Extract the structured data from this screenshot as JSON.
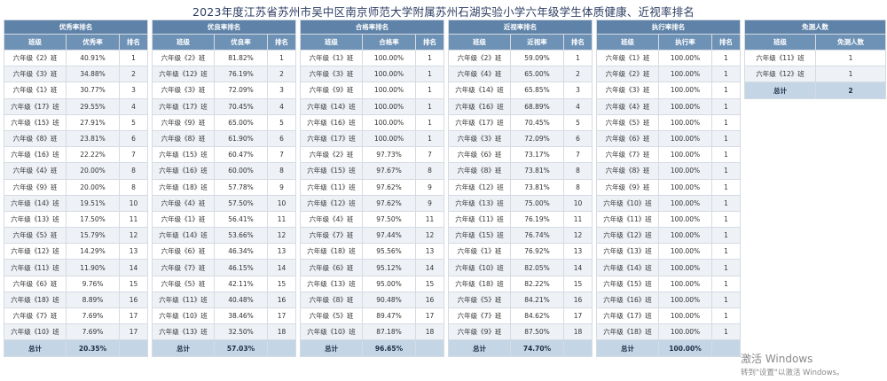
{
  "title": "2023年度江苏省苏州市吴中区南京师范大学附属苏州石湖实验小学六年级学生体质健康、近视率排名",
  "tables": [
    {
      "caption": "优秀率排名",
      "headers": [
        "班级",
        "优秀率",
        "排名"
      ],
      "rows": [
        [
          "六年级《2》班",
          "40.91%",
          "1"
        ],
        [
          "六年级《3》班",
          "34.88%",
          "2"
        ],
        [
          "六年级《1》班",
          "30.77%",
          "3"
        ],
        [
          "六年级《17》班",
          "29.55%",
          "4"
        ],
        [
          "六年级《15》班",
          "27.91%",
          "5"
        ],
        [
          "六年级《8》班",
          "23.81%",
          "6"
        ],
        [
          "六年级《16》班",
          "22.22%",
          "7"
        ],
        [
          "六年级《4》班",
          "20.00%",
          "8"
        ],
        [
          "六年级《9》班",
          "20.00%",
          "8"
        ],
        [
          "六年级《14》班",
          "19.51%",
          "10"
        ],
        [
          "六年级《13》班",
          "17.50%",
          "11"
        ],
        [
          "六年级《5》班",
          "15.79%",
          "12"
        ],
        [
          "六年级《12》班",
          "14.29%",
          "13"
        ],
        [
          "六年级《11》班",
          "11.90%",
          "14"
        ],
        [
          "六年级《6》班",
          "9.76%",
          "15"
        ],
        [
          "六年级《18》班",
          "8.89%",
          "16"
        ],
        [
          "六年级《7》班",
          "7.69%",
          "17"
        ],
        [
          "六年级《10》班",
          "7.69%",
          "17"
        ]
      ],
      "total_label": "总计",
      "total_value": "20.35%"
    },
    {
      "caption": "优良率排名",
      "headers": [
        "班级",
        "优良率",
        "排名"
      ],
      "rows": [
        [
          "六年级《2》班",
          "81.82%",
          "1"
        ],
        [
          "六年级《12》班",
          "76.19%",
          "2"
        ],
        [
          "六年级《3》班",
          "72.09%",
          "3"
        ],
        [
          "六年级《17》班",
          "70.45%",
          "4"
        ],
        [
          "六年级《9》班",
          "65.00%",
          "5"
        ],
        [
          "六年级《8》班",
          "61.90%",
          "6"
        ],
        [
          "六年级《15》班",
          "60.47%",
          "7"
        ],
        [
          "六年级《16》班",
          "60.00%",
          "8"
        ],
        [
          "六年级《18》班",
          "57.78%",
          "9"
        ],
        [
          "六年级《4》班",
          "57.50%",
          "10"
        ],
        [
          "六年级《1》班",
          "56.41%",
          "11"
        ],
        [
          "六年级《14》班",
          "53.66%",
          "12"
        ],
        [
          "六年级《6》班",
          "46.34%",
          "13"
        ],
        [
          "六年级《7》班",
          "46.15%",
          "14"
        ],
        [
          "六年级《5》班",
          "42.11%",
          "15"
        ],
        [
          "六年级《11》班",
          "40.48%",
          "16"
        ],
        [
          "六年级《10》班",
          "38.46%",
          "17"
        ],
        [
          "六年级《13》班",
          "32.50%",
          "18"
        ]
      ],
      "total_label": "总计",
      "total_value": "57.03%"
    },
    {
      "caption": "合格率排名",
      "headers": [
        "班级",
        "合格率",
        "排名"
      ],
      "rows": [
        [
          "六年级《1》班",
          "100.00%",
          "1"
        ],
        [
          "六年级《3》班",
          "100.00%",
          "1"
        ],
        [
          "六年级《9》班",
          "100.00%",
          "1"
        ],
        [
          "六年级《14》班",
          "100.00%",
          "1"
        ],
        [
          "六年级《16》班",
          "100.00%",
          "1"
        ],
        [
          "六年级《17》班",
          "100.00%",
          "1"
        ],
        [
          "六年级《2》班",
          "97.73%",
          "7"
        ],
        [
          "六年级《15》班",
          "97.67%",
          "8"
        ],
        [
          "六年级《11》班",
          "97.62%",
          "9"
        ],
        [
          "六年级《12》班",
          "97.62%",
          "9"
        ],
        [
          "六年级《4》班",
          "97.50%",
          "11"
        ],
        [
          "六年级《7》班",
          "97.44%",
          "12"
        ],
        [
          "六年级《18》班",
          "95.56%",
          "13"
        ],
        [
          "六年级《6》班",
          "95.12%",
          "14"
        ],
        [
          "六年级《13》班",
          "95.00%",
          "15"
        ],
        [
          "六年级《8》班",
          "90.48%",
          "16"
        ],
        [
          "六年级《5》班",
          "89.47%",
          "17"
        ],
        [
          "六年级《10》班",
          "87.18%",
          "18"
        ]
      ],
      "total_label": "总计",
      "total_value": "96.65%"
    },
    {
      "caption": "近视率排名",
      "headers": [
        "班级",
        "近视率",
        "排名"
      ],
      "rows": [
        [
          "六年级《2》班",
          "59.09%",
          "1"
        ],
        [
          "六年级《4》班",
          "65.00%",
          "2"
        ],
        [
          "六年级《14》班",
          "65.85%",
          "3"
        ],
        [
          "六年级《16》班",
          "68.89%",
          "4"
        ],
        [
          "六年级《17》班",
          "70.45%",
          "5"
        ],
        [
          "六年级《3》班",
          "72.09%",
          "6"
        ],
        [
          "六年级《6》班",
          "73.17%",
          "7"
        ],
        [
          "六年级《8》班",
          "73.81%",
          "8"
        ],
        [
          "六年级《12》班",
          "73.81%",
          "8"
        ],
        [
          "六年级《13》班",
          "75.00%",
          "10"
        ],
        [
          "六年级《11》班",
          "76.19%",
          "11"
        ],
        [
          "六年级《15》班",
          "76.74%",
          "12"
        ],
        [
          "六年级《1》班",
          "76.92%",
          "13"
        ],
        [
          "六年级《10》班",
          "82.05%",
          "14"
        ],
        [
          "六年级《18》班",
          "82.22%",
          "15"
        ],
        [
          "六年级《5》班",
          "84.21%",
          "16"
        ],
        [
          "六年级《7》班",
          "84.62%",
          "17"
        ],
        [
          "六年级《9》班",
          "87.50%",
          "18"
        ]
      ],
      "total_label": "总计",
      "total_value": "74.70%"
    },
    {
      "caption": "执行率排名",
      "headers": [
        "班级",
        "执行率",
        "排名"
      ],
      "rows": [
        [
          "六年级《1》班",
          "100.00%",
          "1"
        ],
        [
          "六年级《2》班",
          "100.00%",
          "1"
        ],
        [
          "六年级《3》班",
          "100.00%",
          "1"
        ],
        [
          "六年级《4》班",
          "100.00%",
          "1"
        ],
        [
          "六年级《5》班",
          "100.00%",
          "1"
        ],
        [
          "六年级《6》班",
          "100.00%",
          "1"
        ],
        [
          "六年级《7》班",
          "100.00%",
          "1"
        ],
        [
          "六年级《8》班",
          "100.00%",
          "1"
        ],
        [
          "六年级《9》班",
          "100.00%",
          "1"
        ],
        [
          "六年级《10》班",
          "100.00%",
          "1"
        ],
        [
          "六年级《11》班",
          "100.00%",
          "1"
        ],
        [
          "六年级《12》班",
          "100.00%",
          "1"
        ],
        [
          "六年级《13》班",
          "100.00%",
          "1"
        ],
        [
          "六年级《14》班",
          "100.00%",
          "1"
        ],
        [
          "六年级《15》班",
          "100.00%",
          "1"
        ],
        [
          "六年级《16》班",
          "100.00%",
          "1"
        ],
        [
          "六年级《17》班",
          "100.00%",
          "1"
        ],
        [
          "六年级《18》班",
          "100.00%",
          "1"
        ]
      ],
      "total_label": "总计",
      "total_value": "100.00%"
    }
  ],
  "exempt": {
    "caption": "免测人数",
    "headers": [
      "班级",
      "免测人数"
    ],
    "rows": [
      [
        "六年级《11》班",
        "1"
      ],
      [
        "六年级《12》班",
        "1"
      ]
    ],
    "total_label": "总计",
    "total_value": "2"
  },
  "watermark": {
    "line1": "激活 Windows",
    "line2": "转到\"设置\"以激活 Windows。"
  }
}
